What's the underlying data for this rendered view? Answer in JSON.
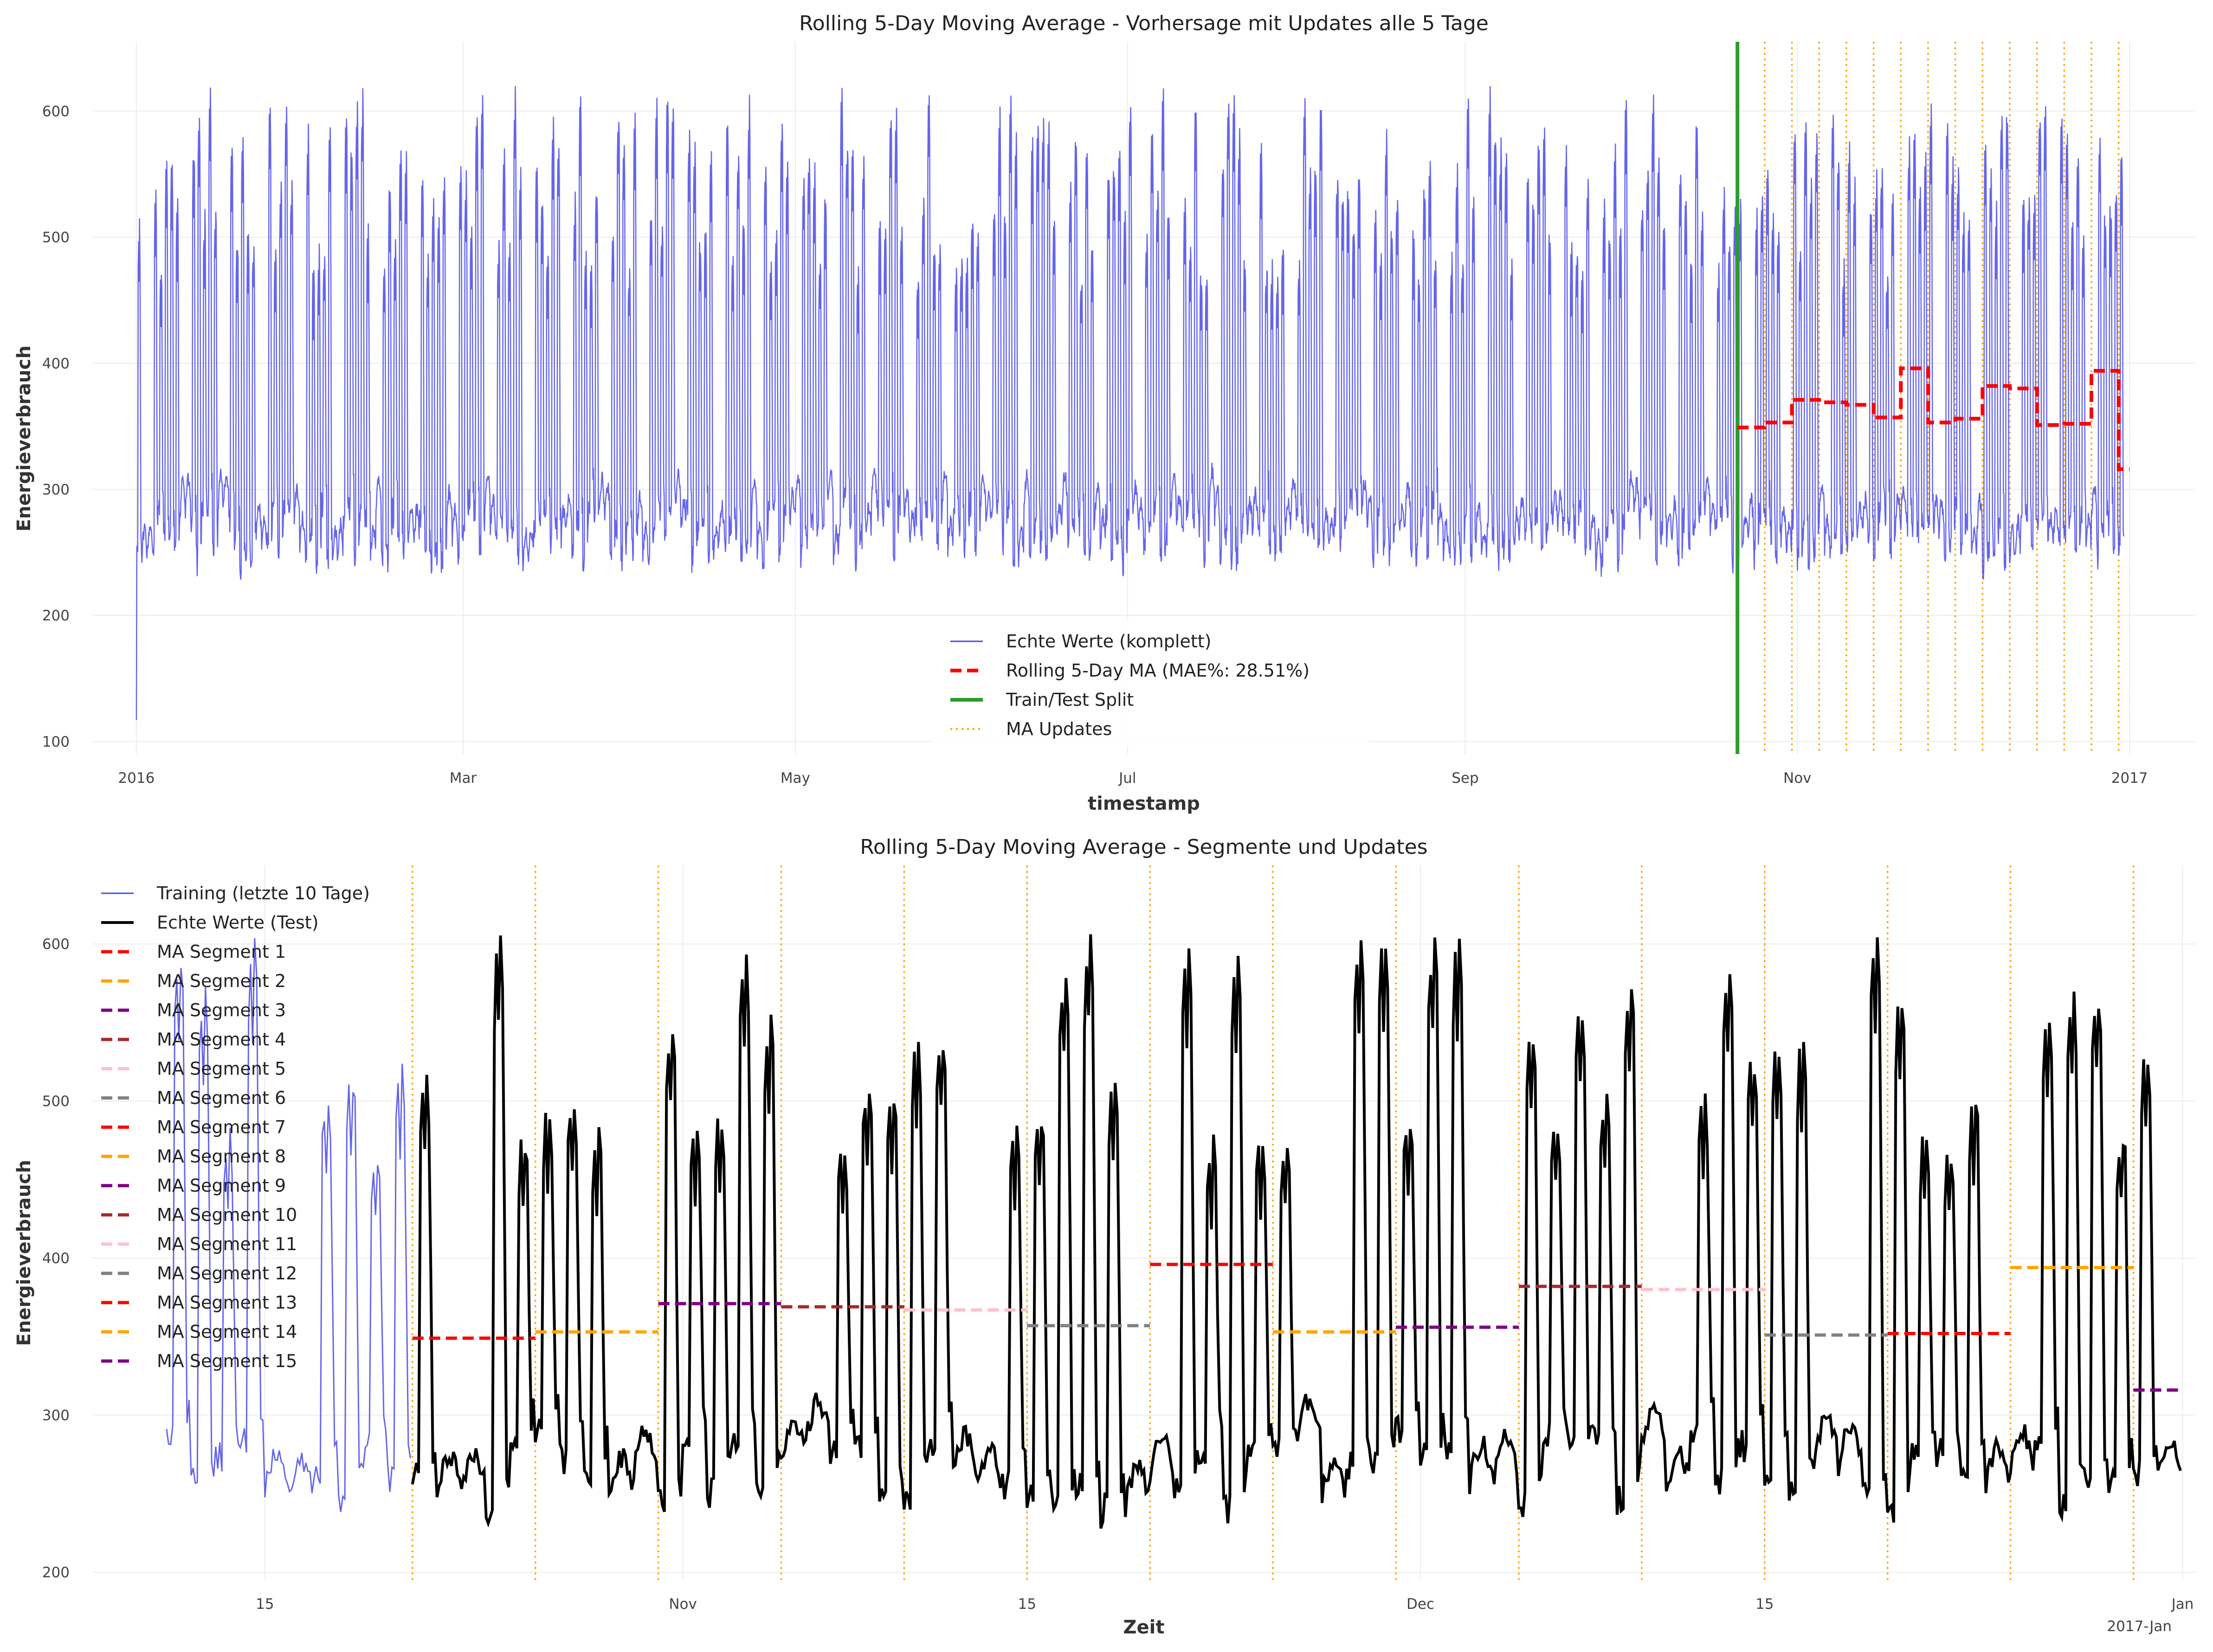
{
  "colors": {
    "actual": "#4a4ae8",
    "test": "#000000",
    "ma": "#ff0000",
    "split": "#2e9b2e",
    "updates": "#ffa500",
    "grid": "#ececec",
    "segment_palette": [
      "#ff0000",
      "#ffa500",
      "#800080",
      "#a52a2a",
      "#ffc0cb",
      "#808080"
    ]
  },
  "chart_data": [
    {
      "type": "line",
      "title": "Rolling 5-Day Moving Average - Vorhersage mit Updates alle 5 Tage",
      "xlabel": "timestamp",
      "ylabel": "Energieverbrauch",
      "xlim": [
        "2015-12-24",
        "2017-01-13"
      ],
      "ylim": [
        90,
        655
      ],
      "grid": true,
      "legend_position": "lower center",
      "x_ticks": [
        {
          "date": "2016-01-01",
          "label": "2016"
        },
        {
          "date": "2016-03-01",
          "label": "Mar"
        },
        {
          "date": "2016-05-01",
          "label": "May"
        },
        {
          "date": "2016-07-01",
          "label": "Jul"
        },
        {
          "date": "2016-09-01",
          "label": "Sep"
        },
        {
          "date": "2016-11-01",
          "label": "Nov"
        },
        {
          "date": "2017-01-01",
          "label": "2017"
        }
      ],
      "y_ticks": [
        100,
        200,
        300,
        400,
        500,
        600
      ],
      "series": [
        {
          "name": "Echte Werte (komplett)",
          "style": "line",
          "note_range": "hourly consumption, weekday peaks 450-630, nights/weekends 210-330",
          "start": "2016-01-01",
          "end": "2016-12-31",
          "first_value": 117
        },
        {
          "name": "Rolling 5-Day MA (MAE%: 28.51%)",
          "style": "dashed",
          "steps": [
            {
              "start": "2016-10-21",
              "end": "2016-10-26",
              "value": 349
            },
            {
              "start": "2016-10-26",
              "end": "2016-10-31",
              "value": 353
            },
            {
              "start": "2016-10-31",
              "end": "2016-11-05",
              "value": 371
            },
            {
              "start": "2016-11-05",
              "end": "2016-11-10",
              "value": 369
            },
            {
              "start": "2016-11-10",
              "end": "2016-11-15",
              "value": 367
            },
            {
              "start": "2016-11-15",
              "end": "2016-11-20",
              "value": 357
            },
            {
              "start": "2016-11-20",
              "end": "2016-11-25",
              "value": 396
            },
            {
              "start": "2016-11-25",
              "end": "2016-11-30",
              "value": 353
            },
            {
              "start": "2016-11-30",
              "end": "2016-12-05",
              "value": 356
            },
            {
              "start": "2016-12-05",
              "end": "2016-12-10",
              "value": 382
            },
            {
              "start": "2016-12-10",
              "end": "2016-12-15",
              "value": 380
            },
            {
              "start": "2016-12-15",
              "end": "2016-12-20",
              "value": 351
            },
            {
              "start": "2016-12-20",
              "end": "2016-12-25",
              "value": 352
            },
            {
              "start": "2016-12-25",
              "end": "2016-12-30",
              "value": 394
            },
            {
              "start": "2016-12-30",
              "end": "2017-01-01",
              "value": 316
            }
          ]
        },
        {
          "name": "Train/Test Split",
          "style": "vline",
          "x": "2016-10-21"
        },
        {
          "name": "MA Updates",
          "style": "dotted-vlines",
          "x": [
            "2016-10-26",
            "2016-10-31",
            "2016-11-05",
            "2016-11-10",
            "2016-11-15",
            "2016-11-20",
            "2016-11-25",
            "2016-11-30",
            "2016-12-05",
            "2016-12-10",
            "2016-12-15",
            "2016-12-20",
            "2016-12-25",
            "2016-12-30"
          ]
        }
      ],
      "legend": [
        "Echte Werte (komplett)",
        "Rolling 5-Day MA (MAE%: 28.51%)",
        "Train/Test Split",
        "MA Updates"
      ]
    },
    {
      "type": "line",
      "title": "Rolling 5-Day Moving Average - Segmente und Updates",
      "xlabel": "Zeit",
      "ylabel": "Energieverbrauch",
      "xlim": [
        "2016-10-08",
        "2017-01-01T12:00"
      ],
      "ylim": [
        195,
        650
      ],
      "grid": true,
      "legend_position": "upper left",
      "x_ticks": [
        {
          "date": "2016-10-15",
          "label": "15"
        },
        {
          "date": "2016-11-01",
          "label": "Nov"
        },
        {
          "date": "2016-11-15",
          "label": "15"
        },
        {
          "date": "2016-12-01",
          "label": "Dec"
        },
        {
          "date": "2016-12-15",
          "label": "15"
        },
        {
          "date": "2017-01-01",
          "label": "Jan"
        }
      ],
      "x_offset_label": "2017-Jan",
      "y_ticks": [
        200,
        300,
        400,
        500,
        600
      ],
      "series": [
        {
          "name": "Training (letzte 10 Tage)",
          "style": "line",
          "start": "2016-10-11",
          "end": "2016-10-21"
        },
        {
          "name": "Echte Werte (Test)",
          "style": "line",
          "start": "2016-10-21",
          "end": "2017-01-01"
        },
        {
          "name": "MA Segment 1",
          "start": "2016-10-21",
          "end": "2016-10-26",
          "value": 349
        },
        {
          "name": "MA Segment 2",
          "start": "2016-10-26",
          "end": "2016-10-31",
          "value": 353
        },
        {
          "name": "MA Segment 3",
          "start": "2016-10-31",
          "end": "2016-11-05",
          "value": 371
        },
        {
          "name": "MA Segment 4",
          "start": "2016-11-05",
          "end": "2016-11-10",
          "value": 369
        },
        {
          "name": "MA Segment 5",
          "start": "2016-11-10",
          "end": "2016-11-15",
          "value": 367
        },
        {
          "name": "MA Segment 6",
          "start": "2016-11-15",
          "end": "2016-11-20",
          "value": 357
        },
        {
          "name": "MA Segment 7",
          "start": "2016-11-20",
          "end": "2016-11-25",
          "value": 396
        },
        {
          "name": "MA Segment 8",
          "start": "2016-11-25",
          "end": "2016-11-30",
          "value": 353
        },
        {
          "name": "MA Segment 9",
          "start": "2016-11-30",
          "end": "2016-12-05",
          "value": 356
        },
        {
          "name": "MA Segment 10",
          "start": "2016-12-05",
          "end": "2016-12-10",
          "value": 382
        },
        {
          "name": "MA Segment 11",
          "start": "2016-12-10",
          "end": "2016-12-15",
          "value": 380
        },
        {
          "name": "MA Segment 12",
          "start": "2016-12-15",
          "end": "2016-12-20",
          "value": 351
        },
        {
          "name": "MA Segment 13",
          "start": "2016-12-20",
          "end": "2016-12-25",
          "value": 352
        },
        {
          "name": "MA Segment 14",
          "start": "2016-12-25",
          "end": "2016-12-30",
          "value": 394
        },
        {
          "name": "MA Segment 15",
          "start": "2016-12-30",
          "end": "2017-01-01",
          "value": 316
        }
      ],
      "update_lines": [
        "2016-10-21",
        "2016-10-26",
        "2016-10-31",
        "2016-11-05",
        "2016-11-10",
        "2016-11-15",
        "2016-11-20",
        "2016-11-25",
        "2016-11-30",
        "2016-12-05",
        "2016-12-10",
        "2016-12-15",
        "2016-12-20",
        "2016-12-25",
        "2016-12-30"
      ]
    }
  ]
}
